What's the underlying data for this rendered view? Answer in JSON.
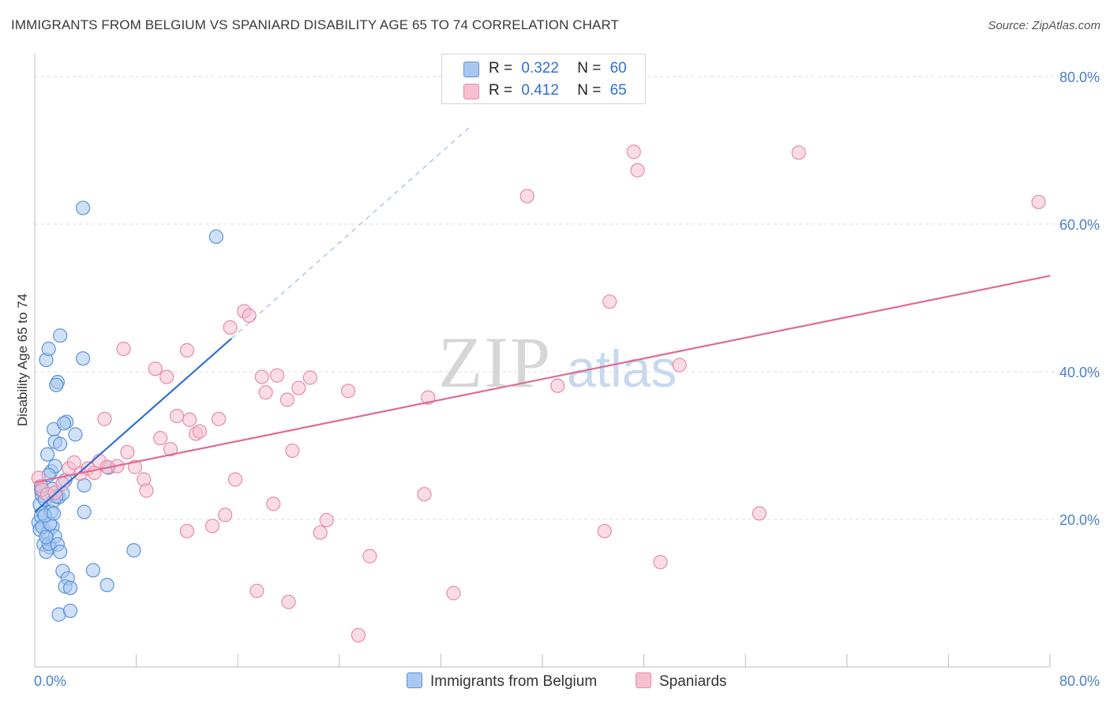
{
  "title": "IMMIGRANTS FROM BELGIUM VS SPANIARD DISABILITY AGE 65 TO 74 CORRELATION CHART",
  "source": "Source: ZipAtlas.com",
  "watermark": {
    "zip": "ZIP",
    "atlas": "atlas"
  },
  "colors": {
    "blue_fill": "#a9c8f0",
    "blue_stroke": "#5b93d8",
    "blue_line": "#2f6fd6",
    "pink_fill": "#f6bfd0",
    "pink_stroke": "#e88aa9",
    "pink_line": "#e06a93",
    "grid": "#dcdcdc",
    "axis_text": "#4a7fcf"
  },
  "legend": {
    "r_label": "R =",
    "n_label": "N =",
    "series": [
      {
        "name": "Immigrants from Belgium",
        "r": "0.322",
        "n": "60"
      },
      {
        "name": "Spaniards",
        "r": "0.412",
        "n": "65"
      }
    ]
  },
  "chart_data": {
    "type": "scatter",
    "title": "IMMIGRANTS FROM BELGIUM VS SPANIARD DISABILITY AGE 65 TO 74 CORRELATION CHART",
    "xlabel": "",
    "ylabel": "Disability Age 65 to 74",
    "xlim": [
      0,
      80
    ],
    "ylim": [
      0,
      80
    ],
    "x_tick_labels": [
      "0.0%",
      "80.0%"
    ],
    "y_tick_labels": [
      "20.0%",
      "40.0%",
      "60.0%",
      "80.0%"
    ],
    "y_ticks": [
      20,
      40,
      60,
      80
    ],
    "series": [
      {
        "name": "Immigrants from Belgium",
        "r": 0.322,
        "n": 60,
        "trend": {
          "x0": 0.0,
          "y0": 21.0,
          "x1": 15.5,
          "y1": 44.5,
          "dash_to_x": 34.5,
          "dash_to_y": 73.5
        },
        "points": [
          [
            0.3,
            19.6
          ],
          [
            0.4,
            22.0
          ],
          [
            0.5,
            20.4
          ],
          [
            0.4,
            18.6
          ],
          [
            0.6,
            23.2
          ],
          [
            0.8,
            22.7
          ],
          [
            0.5,
            24.0
          ],
          [
            0.7,
            16.6
          ],
          [
            1.0,
            18.1
          ],
          [
            1.2,
            16.2
          ],
          [
            0.9,
            15.6
          ],
          [
            0.6,
            19.0
          ],
          [
            0.7,
            20.8
          ],
          [
            1.1,
            16.7
          ],
          [
            1.4,
            19.0
          ],
          [
            1.6,
            17.7
          ],
          [
            1.3,
            21.0
          ],
          [
            1.5,
            22.5
          ],
          [
            1.8,
            16.6
          ],
          [
            1.4,
            24.1
          ],
          [
            1.9,
            23.0
          ],
          [
            2.0,
            15.6
          ],
          [
            1.2,
            19.4
          ],
          [
            0.9,
            17.6
          ],
          [
            0.8,
            20.5
          ],
          [
            1.5,
            20.8
          ],
          [
            2.4,
            25.3
          ],
          [
            2.2,
            23.5
          ],
          [
            1.7,
            23.1
          ],
          [
            1.3,
            26.5
          ],
          [
            1.0,
            28.8
          ],
          [
            1.6,
            27.2
          ],
          [
            1.5,
            32.2
          ],
          [
            1.6,
            30.5
          ],
          [
            2.0,
            30.2
          ],
          [
            2.5,
            33.2
          ],
          [
            2.3,
            33.0
          ],
          [
            3.2,
            31.5
          ],
          [
            1.8,
            38.6
          ],
          [
            1.7,
            38.2
          ],
          [
            0.9,
            41.6
          ],
          [
            1.1,
            43.1
          ],
          [
            2.0,
            44.9
          ],
          [
            3.8,
            41.8
          ],
          [
            3.9,
            24.6
          ],
          [
            3.9,
            21.0
          ],
          [
            2.2,
            13.0
          ],
          [
            2.6,
            12.0
          ],
          [
            2.4,
            10.9
          ],
          [
            2.8,
            10.7
          ],
          [
            1.9,
            7.1
          ],
          [
            2.8,
            7.6
          ],
          [
            4.6,
            13.1
          ],
          [
            5.7,
            11.1
          ],
          [
            7.8,
            15.8
          ],
          [
            5.8,
            27.0
          ],
          [
            3.8,
            62.2
          ],
          [
            14.3,
            58.3
          ],
          [
            1.1,
            26.0
          ],
          [
            0.5,
            24.5
          ]
        ]
      },
      {
        "name": "Spaniards",
        "r": 0.412,
        "n": 65,
        "trend": {
          "x0": 0.0,
          "y0": 25.0,
          "x1": 80.0,
          "y1": 53.0
        },
        "points": [
          [
            0.3,
            25.6
          ],
          [
            0.6,
            24.0
          ],
          [
            1.0,
            23.4
          ],
          [
            1.6,
            23.6
          ],
          [
            2.2,
            24.8
          ],
          [
            2.7,
            26.9
          ],
          [
            3.1,
            27.7
          ],
          [
            3.6,
            26.2
          ],
          [
            4.2,
            26.9
          ],
          [
            4.7,
            26.3
          ],
          [
            5.1,
            27.9
          ],
          [
            5.7,
            27.1
          ],
          [
            6.5,
            27.2
          ],
          [
            7.3,
            29.1
          ],
          [
            7.9,
            27.1
          ],
          [
            8.6,
            25.4
          ],
          [
            8.8,
            23.9
          ],
          [
            5.5,
            33.6
          ],
          [
            7.0,
            43.1
          ],
          [
            9.5,
            40.4
          ],
          [
            10.4,
            39.3
          ],
          [
            9.9,
            31.0
          ],
          [
            10.7,
            29.5
          ],
          [
            11.2,
            34.0
          ],
          [
            12.2,
            33.5
          ],
          [
            12.7,
            31.6
          ],
          [
            13.0,
            31.9
          ],
          [
            12.0,
            42.9
          ],
          [
            14.5,
            33.6
          ],
          [
            15.4,
            46.0
          ],
          [
            16.5,
            48.2
          ],
          [
            16.9,
            47.6
          ],
          [
            17.9,
            39.3
          ],
          [
            18.2,
            37.2
          ],
          [
            19.1,
            39.5
          ],
          [
            19.9,
            36.2
          ],
          [
            20.8,
            37.8
          ],
          [
            21.7,
            39.2
          ],
          [
            20.3,
            29.3
          ],
          [
            15.8,
            25.4
          ],
          [
            18.8,
            22.1
          ],
          [
            15.0,
            20.6
          ],
          [
            14.0,
            19.1
          ],
          [
            12.0,
            18.4
          ],
          [
            22.5,
            18.2
          ],
          [
            23.0,
            19.9
          ],
          [
            24.7,
            37.4
          ],
          [
            26.4,
            15.0
          ],
          [
            17.5,
            10.3
          ],
          [
            20.0,
            8.8
          ],
          [
            25.5,
            4.3
          ],
          [
            31.0,
            36.5
          ],
          [
            30.7,
            23.4
          ],
          [
            33.0,
            10.0
          ],
          [
            41.2,
            38.1
          ],
          [
            38.8,
            63.8
          ],
          [
            45.3,
            49.5
          ],
          [
            44.9,
            18.4
          ],
          [
            47.2,
            69.8
          ],
          [
            47.5,
            67.3
          ],
          [
            49.3,
            14.2
          ],
          [
            50.8,
            40.9
          ],
          [
            57.1,
            20.8
          ],
          [
            60.2,
            69.7
          ],
          [
            79.1,
            63.0
          ]
        ]
      }
    ]
  }
}
